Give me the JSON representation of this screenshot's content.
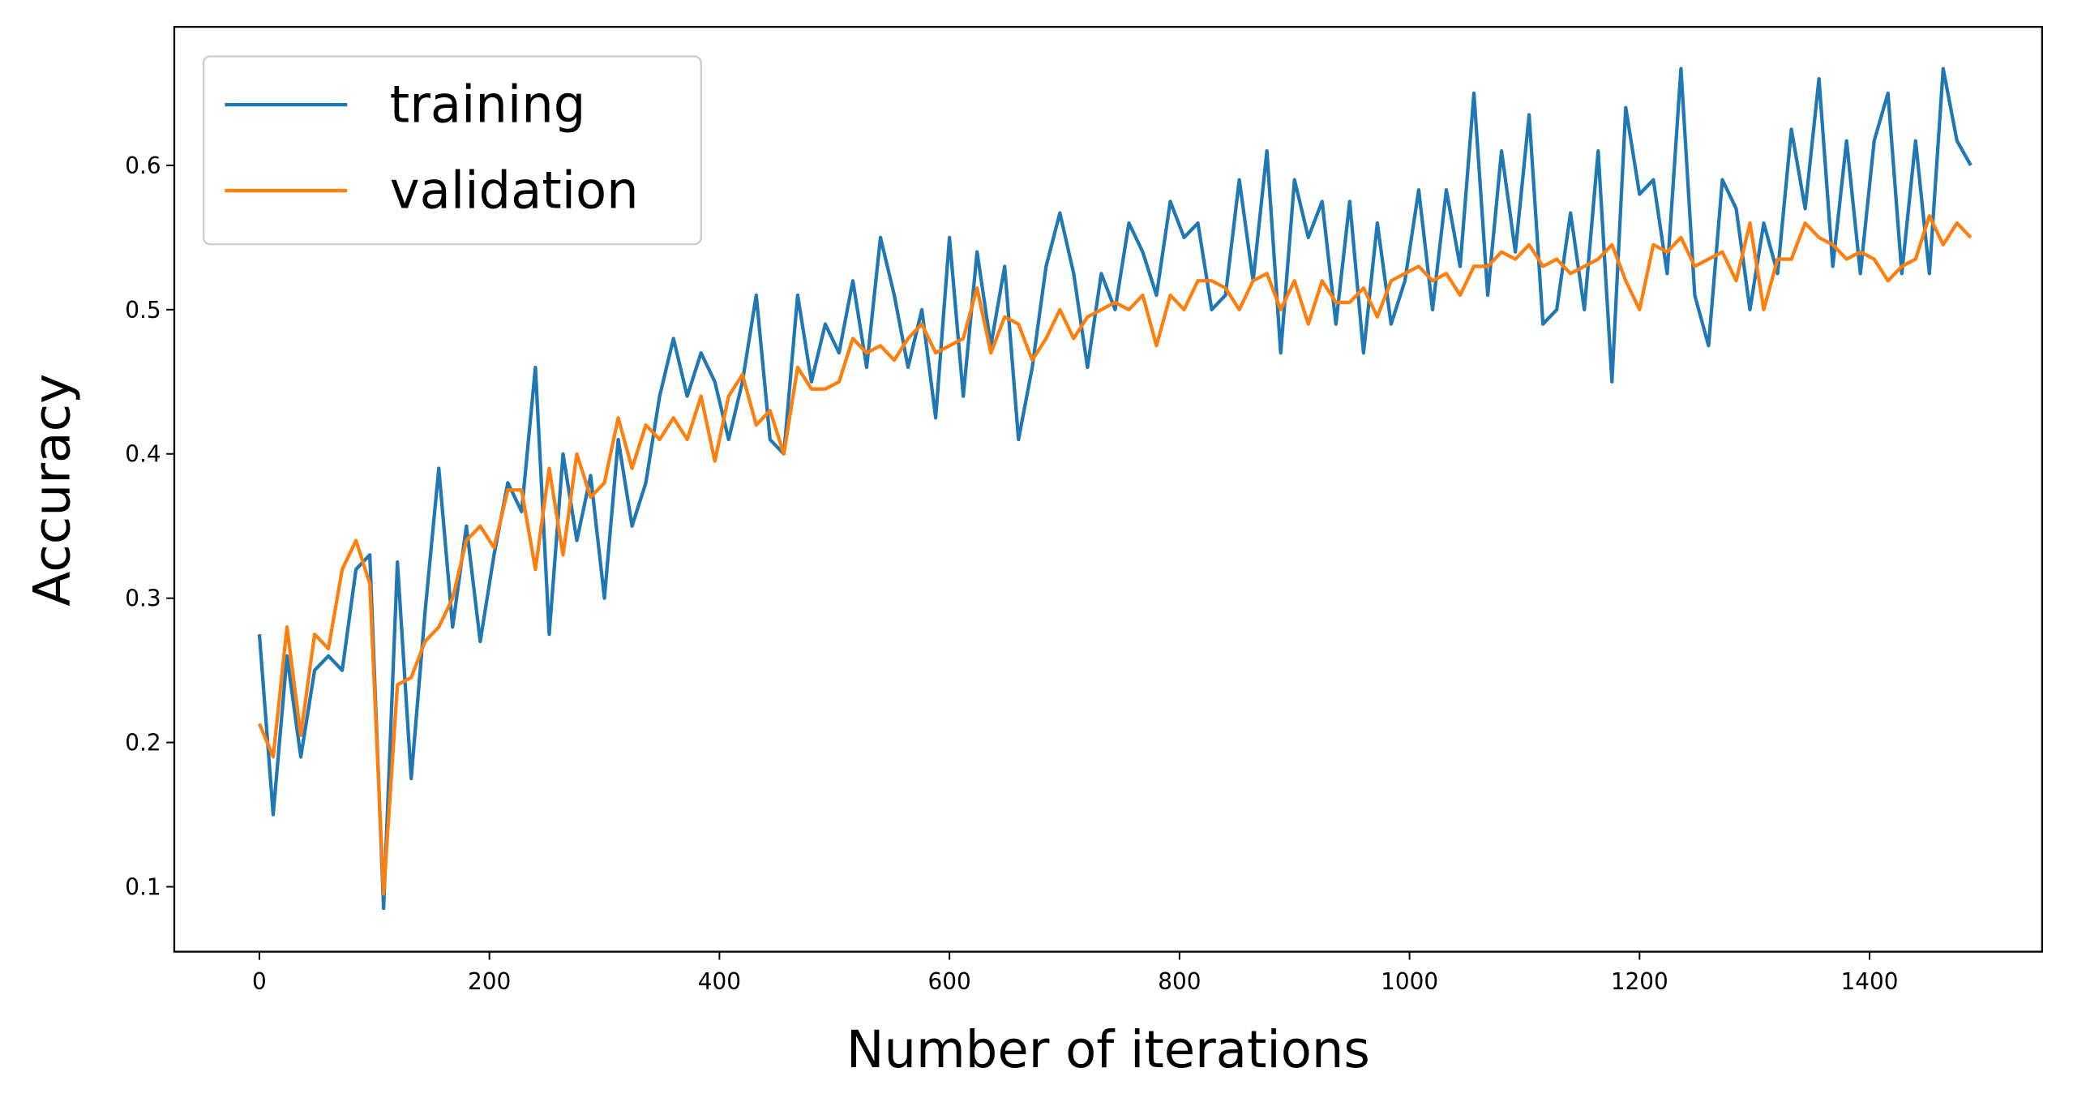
{
  "chart_data": {
    "type": "line",
    "x_label": "Number of iterations",
    "y_label": "Accuracy",
    "xlim": [
      -74,
      1550
    ],
    "ylim": [
      0.055,
      0.696
    ],
    "xticks": [
      0,
      200,
      400,
      600,
      800,
      1000,
      1200,
      1400
    ],
    "yticks": [
      0.1,
      0.2,
      0.3,
      0.4,
      0.5,
      0.6
    ],
    "legend": "upper left",
    "grid": false,
    "x": [
      0,
      12,
      24,
      36,
      48,
      60,
      72,
      84,
      96,
      108,
      120,
      132,
      144,
      156,
      168,
      180,
      192,
      204,
      216,
      228,
      240,
      252,
      264,
      276,
      288,
      300,
      312,
      324,
      336,
      348,
      360,
      372,
      384,
      396,
      408,
      420,
      432,
      444,
      456,
      468,
      480,
      492,
      504,
      516,
      528,
      540,
      552,
      564,
      576,
      588,
      600,
      612,
      624,
      636,
      648,
      660,
      672,
      684,
      696,
      708,
      720,
      732,
      744,
      756,
      768,
      780,
      792,
      804,
      816,
      828,
      840,
      852,
      864,
      876,
      888,
      900,
      912,
      924,
      936,
      948,
      960,
      972,
      984,
      996,
      1008,
      1020,
      1032,
      1044,
      1056,
      1068,
      1080,
      1092,
      1104,
      1116,
      1128,
      1140,
      1152,
      1164,
      1176,
      1188,
      1200,
      1212,
      1224,
      1236,
      1248,
      1260,
      1272,
      1284,
      1296,
      1308,
      1320,
      1332,
      1344,
      1356,
      1368,
      1380,
      1392,
      1404,
      1416,
      1428,
      1440,
      1452,
      1464,
      1476,
      1488
    ],
    "series": [
      {
        "name": "training",
        "color": "#1f77b4",
        "values": [
          0.275,
          0.15,
          0.26,
          0.19,
          0.25,
          0.26,
          0.25,
          0.32,
          0.33,
          0.085,
          0.325,
          0.175,
          0.29,
          0.39,
          0.28,
          0.35,
          0.27,
          0.33,
          0.38,
          0.36,
          0.46,
          0.275,
          0.4,
          0.34,
          0.385,
          0.3,
          0.41,
          0.35,
          0.38,
          0.44,
          0.48,
          0.44,
          0.47,
          0.45,
          0.41,
          0.45,
          0.51,
          0.41,
          0.4,
          0.51,
          0.45,
          0.49,
          0.47,
          0.52,
          0.46,
          0.55,
          0.51,
          0.46,
          0.5,
          0.425,
          0.55,
          0.44,
          0.54,
          0.475,
          0.53,
          0.41,
          0.46,
          0.53,
          0.567,
          0.525,
          0.46,
          0.525,
          0.5,
          0.56,
          0.54,
          0.51,
          0.575,
          0.55,
          0.56,
          0.5,
          0.51,
          0.59,
          0.52,
          0.61,
          0.47,
          0.59,
          0.55,
          0.575,
          0.49,
          0.575,
          0.47,
          0.56,
          0.49,
          0.52,
          0.583,
          0.5,
          0.583,
          0.53,
          0.65,
          0.51,
          0.61,
          0.54,
          0.635,
          0.49,
          0.5,
          0.567,
          0.5,
          0.61,
          0.45,
          0.64,
          0.58,
          0.59,
          0.525,
          0.667,
          0.51,
          0.475,
          0.59,
          0.57,
          0.5,
          0.56,
          0.525,
          0.625,
          0.57,
          0.66,
          0.53,
          0.617,
          0.525,
          0.617,
          0.65,
          0.525,
          0.617,
          0.525,
          0.667,
          0.617,
          0.6
        ]
      },
      {
        "name": "validation",
        "color": "#ff7f0e",
        "values": [
          0.213,
          0.19,
          0.28,
          0.205,
          0.275,
          0.265,
          0.32,
          0.34,
          0.31,
          0.095,
          0.24,
          0.245,
          0.27,
          0.28,
          0.3,
          0.34,
          0.35,
          0.335,
          0.375,
          0.375,
          0.32,
          0.39,
          0.33,
          0.4,
          0.37,
          0.38,
          0.425,
          0.39,
          0.42,
          0.41,
          0.425,
          0.41,
          0.44,
          0.395,
          0.44,
          0.455,
          0.42,
          0.43,
          0.4,
          0.46,
          0.445,
          0.445,
          0.45,
          0.48,
          0.47,
          0.475,
          0.465,
          0.48,
          0.49,
          0.47,
          0.475,
          0.48,
          0.515,
          0.47,
          0.495,
          0.49,
          0.465,
          0.48,
          0.5,
          0.48,
          0.495,
          0.5,
          0.505,
          0.5,
          0.51,
          0.475,
          0.51,
          0.5,
          0.52,
          0.52,
          0.515,
          0.5,
          0.52,
          0.525,
          0.5,
          0.52,
          0.49,
          0.52,
          0.505,
          0.505,
          0.515,
          0.495,
          0.52,
          0.525,
          0.53,
          0.52,
          0.525,
          0.51,
          0.53,
          0.53,
          0.54,
          0.535,
          0.545,
          0.53,
          0.535,
          0.525,
          0.53,
          0.535,
          0.545,
          0.52,
          0.5,
          0.545,
          0.54,
          0.55,
          0.53,
          0.535,
          0.54,
          0.52,
          0.56,
          0.5,
          0.535,
          0.535,
          0.56,
          0.55,
          0.545,
          0.535,
          0.54,
          0.535,
          0.52,
          0.53,
          0.535,
          0.565,
          0.545,
          0.56,
          0.55
        ]
      }
    ]
  }
}
